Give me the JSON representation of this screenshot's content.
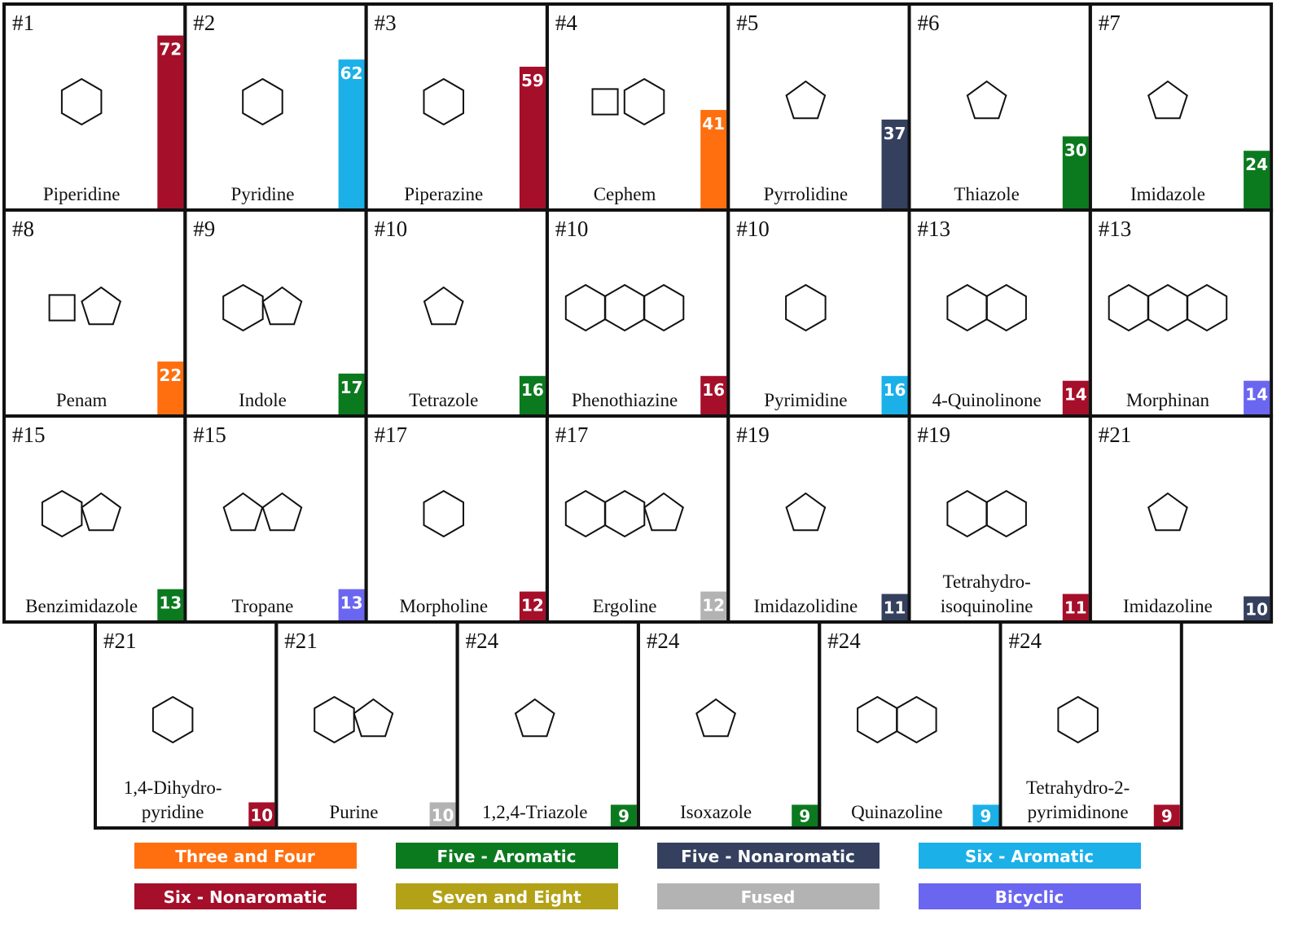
{
  "cells": [
    {
      "rank": "#1",
      "name": [
        "Piperidine"
      ],
      "count": 72,
      "group": "Six - Nonaromatic"
    },
    {
      "rank": "#2",
      "name": [
        "Pyridine"
      ],
      "count": 62,
      "group": "Six - Aromatic"
    },
    {
      "rank": "#3",
      "name": [
        "Piperazine"
      ],
      "count": 59,
      "group": "Six - Nonaromatic"
    },
    {
      "rank": "#4",
      "name": [
        "Cephem"
      ],
      "count": 41,
      "group": "Three and Four"
    },
    {
      "rank": "#5",
      "name": [
        "Pyrrolidine"
      ],
      "count": 37,
      "group": "Five - Nonaromatic"
    },
    {
      "rank": "#6",
      "name": [
        "Thiazole"
      ],
      "count": 30,
      "group": "Five - Aromatic"
    },
    {
      "rank": "#7",
      "name": [
        "Imidazole"
      ],
      "count": 24,
      "group": "Five - Aromatic"
    },
    {
      "rank": "#8",
      "name": [
        "Penam"
      ],
      "count": 22,
      "group": "Three and Four"
    },
    {
      "rank": "#9",
      "name": [
        "Indole"
      ],
      "count": 17,
      "group": "Five - Aromatic"
    },
    {
      "rank": "#10",
      "name": [
        "Tetrazole"
      ],
      "count": 16,
      "group": "Five - Aromatic"
    },
    {
      "rank": "#10",
      "name": [
        "Phenothiazine"
      ],
      "count": 16,
      "group": "Six - Nonaromatic"
    },
    {
      "rank": "#10",
      "name": [
        "Pyrimidine"
      ],
      "count": 16,
      "group": "Six - Aromatic"
    },
    {
      "rank": "#13",
      "name": [
        "4-Quinolinone"
      ],
      "count": 14,
      "group": "Six - Nonaromatic"
    },
    {
      "rank": "#13",
      "name": [
        "Morphinan"
      ],
      "count": 14,
      "group": "Bicyclic"
    },
    {
      "rank": "#15",
      "name": [
        "Benzimidazole"
      ],
      "count": 13,
      "group": "Five - Aromatic"
    },
    {
      "rank": "#15",
      "name": [
        "Tropane"
      ],
      "count": 13,
      "group": "Bicyclic"
    },
    {
      "rank": "#17",
      "name": [
        "Morpholine"
      ],
      "count": 12,
      "group": "Six - Nonaromatic"
    },
    {
      "rank": "#17",
      "name": [
        "Ergoline"
      ],
      "count": 12,
      "group": "Fused"
    },
    {
      "rank": "#19",
      "name": [
        "Imidazolidine"
      ],
      "count": 11,
      "group": "Five - Nonaromatic"
    },
    {
      "rank": "#19",
      "name": [
        "Tetrahydro-",
        "isoquinoline"
      ],
      "count": 11,
      "group": "Six - Nonaromatic"
    },
    {
      "rank": "#21",
      "name": [
        "Imidazoline"
      ],
      "count": 10,
      "group": "Five - Nonaromatic"
    },
    {
      "rank": "#21",
      "name": [
        "1,4-Dihydro-",
        "pyridine"
      ],
      "count": 10,
      "group": "Six - Nonaromatic"
    },
    {
      "rank": "#21",
      "name": [
        "Purine"
      ],
      "count": 10,
      "group": "Fused"
    },
    {
      "rank": "#24",
      "name": [
        "1,2,4-Triazole"
      ],
      "count": 9,
      "group": "Five - Aromatic"
    },
    {
      "rank": "#24",
      "name": [
        "Isoxazole"
      ],
      "count": 9,
      "group": "Five - Aromatic"
    },
    {
      "rank": "#24",
      "name": [
        "Quinazoline"
      ],
      "count": 9,
      "group": "Six - Aromatic"
    },
    {
      "rank": "#24",
      "name": [
        "Tetrahydro-2-",
        "pyrimidinone"
      ],
      "count": 9,
      "group": "Six - Nonaromatic"
    }
  ],
  "legend": [
    {
      "label": "Three and Four",
      "color": "#ff6f0f"
    },
    {
      "label": "Five - Aromatic",
      "color": "#0b7a1f"
    },
    {
      "label": "Five - Nonaromatic",
      "color": "#34405e"
    },
    {
      "label": "Six - Aromatic",
      "color": "#1bb0e8"
    },
    {
      "label": "Six - Nonaromatic",
      "color": "#a50f2a"
    },
    {
      "label": "Seven and Eight",
      "color": "#b3a117"
    },
    {
      "label": "Fused",
      "color": "#b3b3b3"
    },
    {
      "label": "Bicyclic",
      "color": "#6b66f0"
    }
  ]
}
